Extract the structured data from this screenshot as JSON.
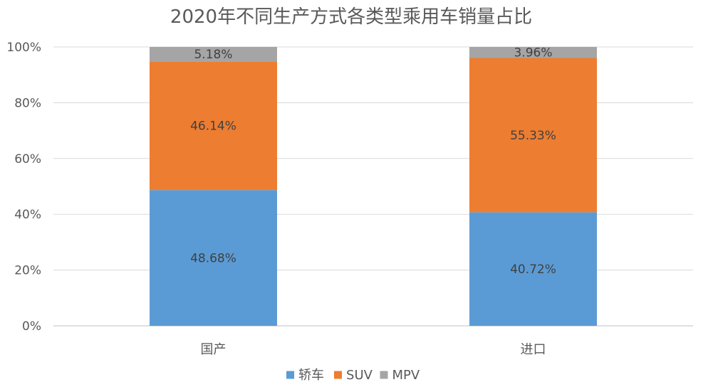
{
  "chart_data": {
    "type": "bar",
    "stacked": true,
    "percent_stacked": true,
    "title": "2020年不同生产方式各类型乘用车销量占比",
    "categories": [
      "国产",
      "进口"
    ],
    "series": [
      {
        "name": "轿车",
        "values": [
          48.68,
          40.72
        ],
        "labels": [
          "48.68%",
          "40.72%"
        ],
        "color": "#5B9BD5"
      },
      {
        "name": "SUV",
        "values": [
          46.14,
          55.33
        ],
        "labels": [
          "46.14%",
          "55.33%"
        ],
        "color": "#ED7D31"
      },
      {
        "name": "MPV",
        "values": [
          5.18,
          3.96
        ],
        "labels": [
          "5.18%",
          "3.96%"
        ],
        "color": "#A5A5A5"
      }
    ],
    "ylim": [
      0,
      100
    ],
    "yticks": [
      "0%",
      "20%",
      "40%",
      "60%",
      "80%",
      "100%"
    ],
    "grid": true,
    "legend_position": "bottom",
    "colors": {
      "text": "#595959",
      "grid": "#D9D9D9",
      "axis": "#BFBFBF"
    }
  }
}
